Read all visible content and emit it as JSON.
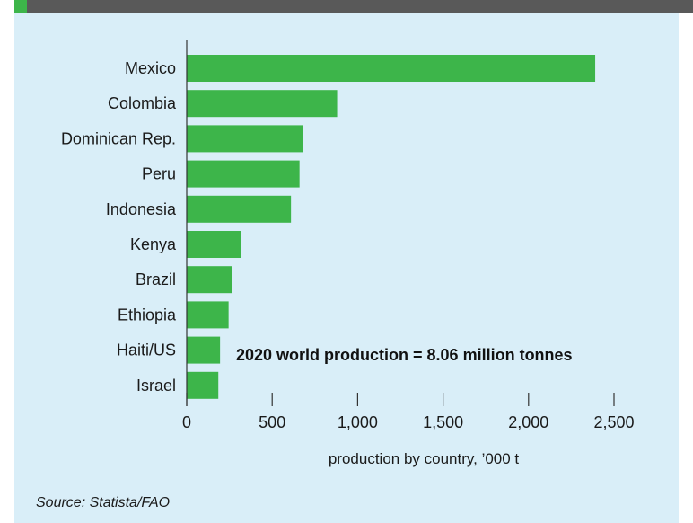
{
  "colors": {
    "bar": "#3db54a",
    "axis": "#333333",
    "panel_background": "#d9eef8",
    "header_bar": "#595959",
    "header_accent": "#3db54a"
  },
  "chart_data": {
    "type": "bar",
    "orientation": "horizontal",
    "categories": [
      "Mexico",
      "Colombia",
      "Dominican Rep.",
      "Peru",
      "Indonesia",
      "Kenya",
      "Brazil",
      "Ethiopia",
      "Haiti/US",
      "Israel"
    ],
    "values": [
      2390,
      880,
      680,
      660,
      610,
      320,
      265,
      245,
      195,
      185
    ],
    "xlabel": "production by country, ’000 t",
    "xlim": [
      0,
      2500
    ],
    "xticks": [
      0,
      500,
      1000,
      1500,
      2000,
      2500
    ],
    "xtick_labels": [
      "0",
      "500",
      "1,000",
      "1,500",
      "2,000",
      "2,500"
    ],
    "annotation": "2020 world production = 8.06 million tonnes",
    "grid": false,
    "legend": "none"
  },
  "source": "Source: Statista/FAO"
}
